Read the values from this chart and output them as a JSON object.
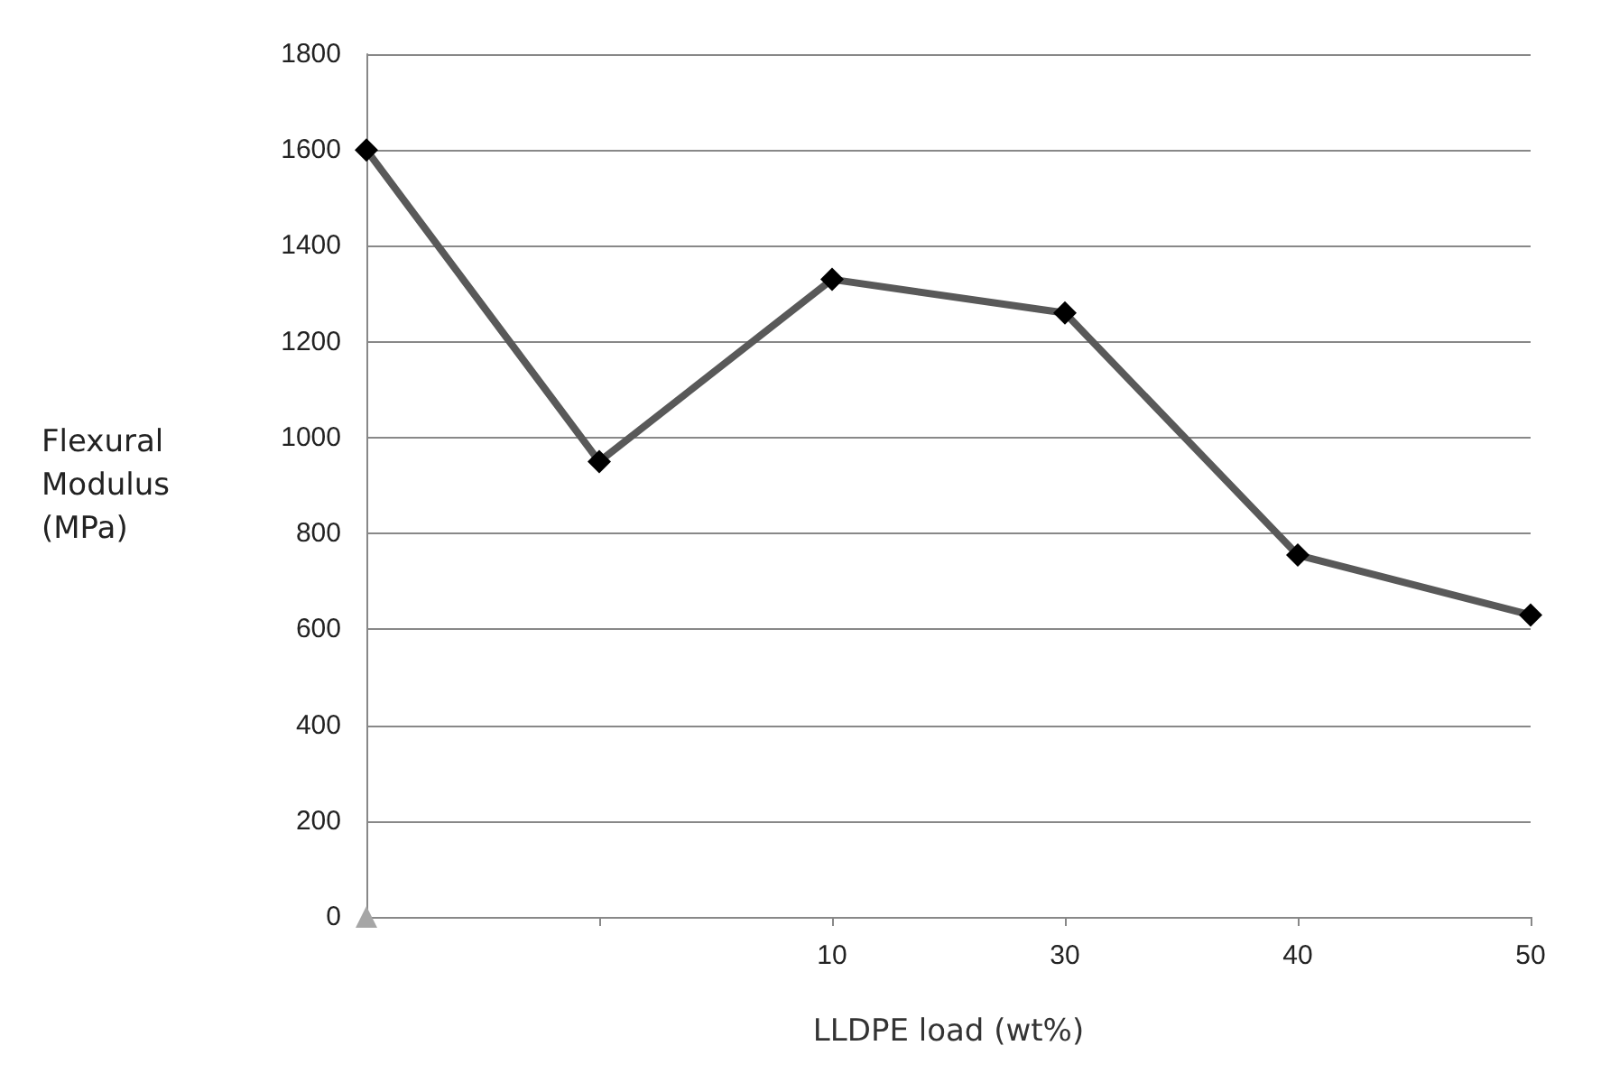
{
  "chart_data": {
    "type": "line",
    "xlabel": "LLDPE load (wt%)",
    "ylabel": "Flexural\nModulus\n(MPa)",
    "categories": [
      null,
      null,
      "10",
      "30",
      "40",
      "50"
    ],
    "series": [
      {
        "color": "#595959",
        "values": [
          1600,
          950,
          1330,
          1260,
          755,
          630
        ],
        "marker": "diamond"
      },
      {
        "color": "#a6a6a6",
        "values": [
          0,
          null,
          null,
          null,
          null,
          null
        ],
        "marker": "triangle"
      }
    ],
    "ylim": [
      0,
      1800
    ],
    "yticks": [
      0,
      200,
      400,
      600,
      800,
      1000,
      1200,
      1400,
      1600,
      1800
    ],
    "grid": "y",
    "line_style": "solid"
  }
}
